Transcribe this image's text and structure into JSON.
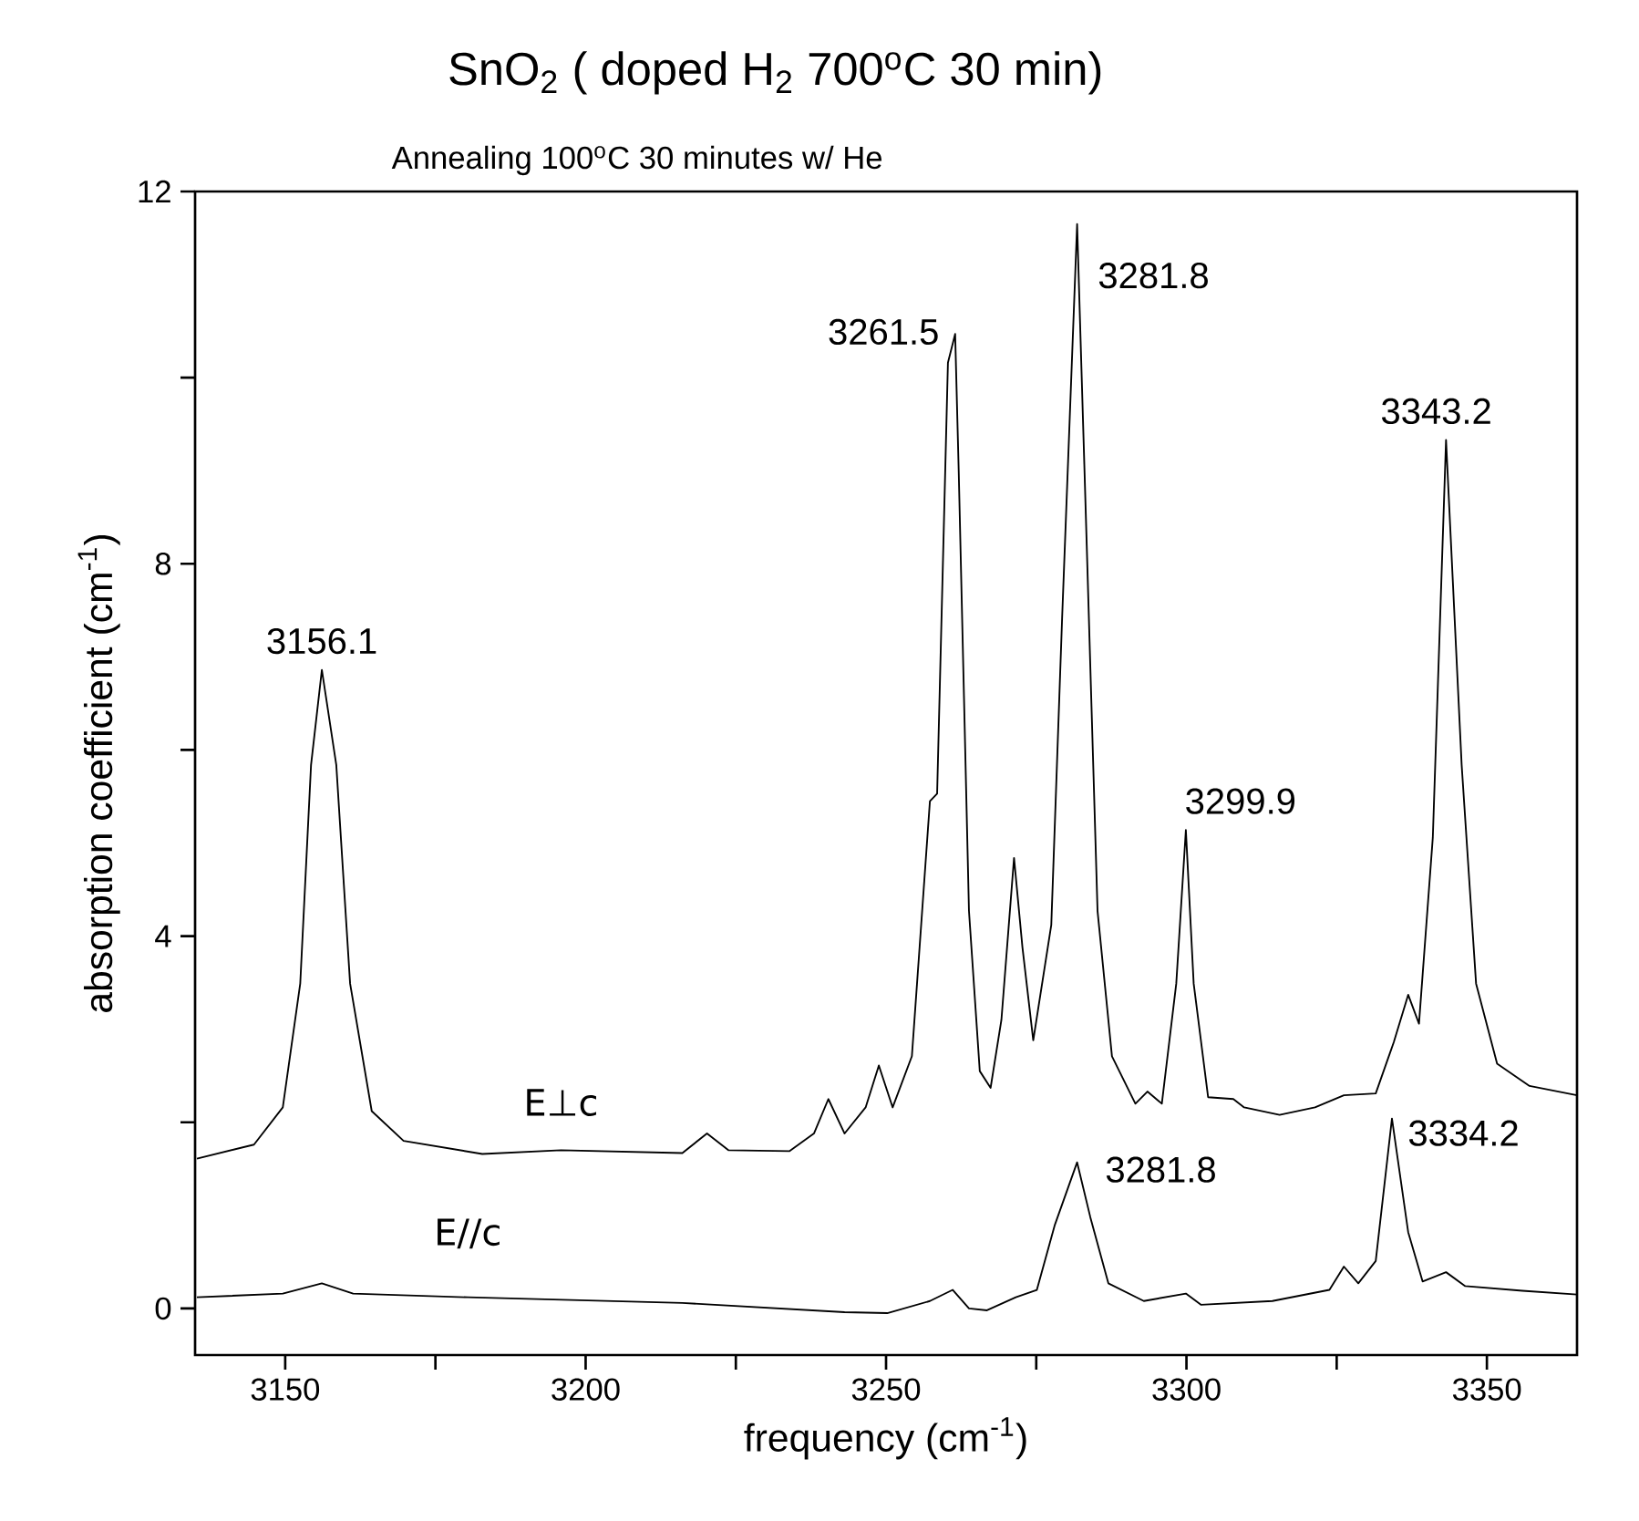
{
  "chart_data": {
    "type": "line",
    "title": "SnO$_{2}$ ( doped H$_{2}$ 700$^{o}$C 30 min)",
    "subtitle": "Annealing 100$^{o}$C 30 minutes w/ He",
    "xlabel": "frequency  (cm$^{-1}$)",
    "ylabel": "absorption coefficient  (cm$^{-1}$)",
    "xlim": [
      3135,
      3365
    ],
    "ylim": [
      -0.5,
      12
    ],
    "xticks": [
      3150,
      {
        "value": 3175,
        "label": null
      },
      3200,
      {
        "value": 3225,
        "label": null
      },
      3250,
      {
        "value": 3275,
        "label": null
      },
      3300,
      {
        "value": 3325,
        "label": null
      },
      3350
    ],
    "yticks": [
      0,
      {
        "value": 2,
        "label": null
      },
      4,
      {
        "value": 6,
        "label": null
      },
      8,
      {
        "value": 10,
        "label": null
      },
      12
    ],
    "series": [
      {
        "name": "E⊥c",
        "color": "#000000",
        "x": [
          3135.3,
          3144.8,
          3149.6,
          3152.5,
          3154.3,
          3156.1,
          3158.5,
          3160.8,
          3164.4,
          3169.7,
          3182.8,
          3195.9,
          3216.1,
          3220.2,
          3223.8,
          3233.9,
          3238.0,
          3240.4,
          3243.1,
          3246.6,
          3248.8,
          3251.1,
          3254.3,
          3257.3,
          3258.5,
          3260.3,
          3261.5,
          3262.1,
          3263.8,
          3265.6,
          3267.4,
          3269.2,
          3271.3,
          3272.7,
          3274.5,
          3277.5,
          3279.3,
          3281.8,
          3283.4,
          3285.2,
          3287.6,
          3291.5,
          3293.5,
          3295.9,
          3298.3,
          3299.9,
          3301.2,
          3303.6,
          3307.8,
          3309.6,
          3315.5,
          3321.4,
          3326.2,
          3331.5,
          3334.5,
          3336.9,
          3338.7,
          3341.0,
          3343.2,
          3345.8,
          3348.2,
          3351.7,
          3357.1,
          3365.0
        ],
        "values": [
          1.61,
          1.76,
          2.16,
          3.49,
          5.84,
          6.86,
          5.84,
          3.49,
          2.12,
          1.8,
          1.66,
          1.7,
          1.67,
          1.88,
          1.7,
          1.69,
          1.88,
          2.25,
          1.88,
          2.16,
          2.61,
          2.16,
          2.71,
          5.45,
          5.53,
          10.16,
          10.47,
          8.98,
          4.27,
          2.55,
          2.37,
          3.1,
          4.84,
          3.88,
          2.88,
          4.12,
          7.41,
          11.65,
          8.2,
          4.27,
          2.71,
          2.2,
          2.33,
          2.2,
          3.49,
          5.14,
          3.49,
          2.27,
          2.25,
          2.16,
          2.08,
          2.16,
          2.29,
          2.31,
          2.86,
          3.37,
          3.06,
          5.06,
          9.33,
          5.84,
          3.49,
          2.63,
          2.39,
          2.29
        ]
      },
      {
        "name": "E//c",
        "color": "#000000",
        "x": [
          3135.3,
          3149.6,
          3156.1,
          3161.3,
          3180.4,
          3216.1,
          3243.1,
          3250.2,
          3257.3,
          3261.1,
          3263.8,
          3266.8,
          3271.6,
          3275.1,
          3278.1,
          3281.8,
          3284.0,
          3287.0,
          3292.9,
          3299.9,
          3302.4,
          3314.3,
          3323.8,
          3326.2,
          3328.6,
          3331.5,
          3334.2,
          3336.9,
          3339.3,
          3343.2,
          3346.4,
          3355.9,
          3365.0
        ],
        "values": [
          0.12,
          0.16,
          0.27,
          0.16,
          0.12,
          0.06,
          -0.04,
          -0.05,
          0.08,
          0.2,
          0.0,
          -0.02,
          0.12,
          0.2,
          0.9,
          1.57,
          0.98,
          0.27,
          0.08,
          0.16,
          0.04,
          0.08,
          0.2,
          0.45,
          0.27,
          0.51,
          2.04,
          0.82,
          0.29,
          0.39,
          0.24,
          0.19,
          0.15
        ]
      }
    ],
    "annotations": [
      {
        "text": "3156.1",
        "x": 3156.1,
        "y": 6.86
      },
      {
        "text": "3261.5",
        "x": 3261.5,
        "y": 10.47
      },
      {
        "text": "3281.8",
        "x": 3281.8,
        "y": 11.65
      },
      {
        "text": "3299.9",
        "x": 3299.9,
        "y": 5.14
      },
      {
        "text": "3343.2",
        "x": 3343.2,
        "y": 9.33
      },
      {
        "text": "3281.8",
        "x": 3281.8,
        "y": 1.57
      },
      {
        "text": "3334.2",
        "x": 3334.2,
        "y": 2.04
      }
    ]
  }
}
